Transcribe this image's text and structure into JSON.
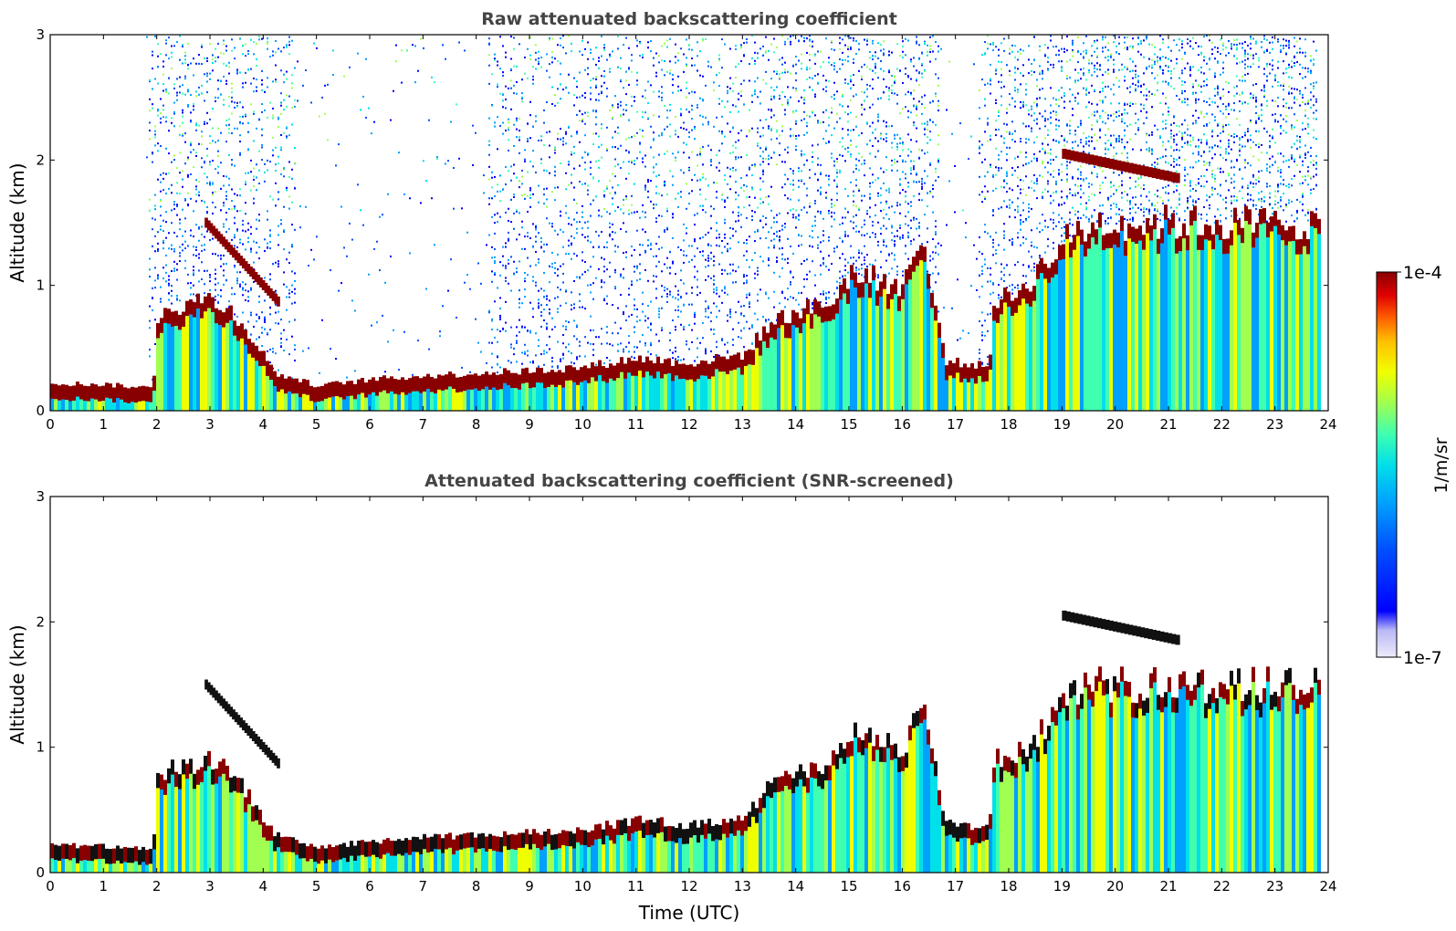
{
  "chart_data": [
    {
      "type": "heatmap",
      "title": "Raw attenuated backscattering coefficient",
      "xlabel": "",
      "ylabel": "Altitude (km)",
      "xlim": [
        0,
        24
      ],
      "ylim": [
        0,
        3
      ],
      "x_ticks": [
        "0",
        "1",
        "2",
        "3",
        "4",
        "5",
        "6",
        "7",
        "8",
        "9",
        "10",
        "11",
        "12",
        "13",
        "14",
        "15",
        "16",
        "17",
        "18",
        "19",
        "20",
        "21",
        "22",
        "23",
        "24"
      ],
      "y_ticks": [
        "0",
        "1",
        "2",
        "3"
      ],
      "layers": {
        "boundary_layer_top_km": [
          [
            0,
            0.22
          ],
          [
            1.0,
            0.21
          ],
          [
            1.9,
            0.18
          ],
          [
            2.0,
            0.8
          ],
          [
            3.0,
            0.9
          ],
          [
            3.5,
            0.75
          ],
          [
            4.2,
            0.3
          ],
          [
            5.0,
            0.2
          ],
          [
            6.0,
            0.25
          ],
          [
            7.0,
            0.28
          ],
          [
            8.0,
            0.3
          ],
          [
            9.0,
            0.32
          ],
          [
            10.0,
            0.35
          ],
          [
            11.0,
            0.42
          ],
          [
            12.0,
            0.38
          ],
          [
            13.0,
            0.45
          ],
          [
            13.5,
            0.7
          ],
          [
            14.0,
            0.8
          ],
          [
            14.6,
            0.85
          ],
          [
            15.0,
            1.1
          ],
          [
            16.0,
            1.0
          ],
          [
            16.3,
            1.4
          ],
          [
            16.8,
            0.4
          ],
          [
            17.6,
            0.35
          ],
          [
            17.7,
            0.9
          ],
          [
            18.0,
            0.9
          ],
          [
            18.5,
            1.1
          ],
          [
            19.0,
            1.35
          ],
          [
            19.6,
            1.5
          ]
        ],
        "elevated_layers_km": [
          {
            "x_start": 2.9,
            "x_end": 4.3,
            "alt_start": 1.5,
            "alt_end": 0.85
          },
          {
            "x_start": 19.0,
            "x_end": 21.2,
            "alt_start": 2.05,
            "alt_end": 1.85
          }
        ]
      },
      "noise": {
        "x_start": 1.8,
        "x_end": 23.8,
        "clear_gaps": [
          [
            0.2,
            1.8
          ],
          [
            4.6,
            8.2
          ],
          [
            16.7,
            17.4
          ]
        ]
      }
    },
    {
      "type": "heatmap",
      "title": "Attenuated backscattering coefficient (SNR-screened)",
      "xlabel": "Time (UTC)",
      "ylabel": "Altitude (km)",
      "xlim": [
        0,
        24
      ],
      "ylim": [
        0,
        3
      ],
      "x_ticks": [
        "0",
        "1",
        "2",
        "3",
        "4",
        "5",
        "6",
        "7",
        "8",
        "9",
        "10",
        "11",
        "12",
        "13",
        "14",
        "15",
        "16",
        "17",
        "18",
        "19",
        "20",
        "21",
        "22",
        "23",
        "24"
      ],
      "y_ticks": [
        "0",
        "1",
        "2",
        "3"
      ],
      "layers": {
        "boundary_layer_top_km": [
          [
            0,
            0.22
          ],
          [
            1.0,
            0.21
          ],
          [
            1.9,
            0.18
          ],
          [
            2.0,
            0.8
          ],
          [
            3.0,
            0.9
          ],
          [
            3.5,
            0.75
          ],
          [
            4.2,
            0.3
          ],
          [
            5.0,
            0.2
          ],
          [
            6.0,
            0.25
          ],
          [
            7.0,
            0.28
          ],
          [
            8.0,
            0.3
          ],
          [
            9.0,
            0.32
          ],
          [
            10.0,
            0.35
          ],
          [
            11.0,
            0.42
          ],
          [
            12.0,
            0.38
          ],
          [
            13.0,
            0.45
          ],
          [
            13.5,
            0.7
          ],
          [
            14.0,
            0.8
          ],
          [
            14.6,
            0.85
          ],
          [
            15.0,
            1.1
          ],
          [
            16.0,
            1.0
          ],
          [
            16.3,
            1.4
          ],
          [
            16.8,
            0.4
          ],
          [
            17.6,
            0.35
          ],
          [
            17.7,
            0.9
          ],
          [
            18.0,
            0.9
          ],
          [
            18.5,
            1.1
          ],
          [
            19.0,
            1.35
          ],
          [
            19.6,
            1.5
          ]
        ],
        "elevated_layers_km": [
          {
            "x_start": 2.9,
            "x_end": 4.3,
            "alt_start": 1.5,
            "alt_end": 0.85
          },
          {
            "x_start": 19.0,
            "x_end": 21.2,
            "alt_start": 2.05,
            "alt_end": 1.85
          }
        ]
      },
      "screened_blue_region": {
        "x_start": 18.8,
        "x_end": 23.8,
        "alt_top_km": 1.0
      }
    }
  ],
  "colorbar": {
    "label": "1/m/sr",
    "max_label": "1e-4",
    "min_label": "1e-7",
    "colors": [
      "#ecebfb",
      "#b9b8f5",
      "#7f7ff0",
      "#0000ff",
      "#0050ff",
      "#00a0ff",
      "#00e0e8",
      "#40ffb0",
      "#a0ff50",
      "#f0ff00",
      "#ffc000",
      "#ff6000",
      "#e00000",
      "#880000"
    ]
  }
}
